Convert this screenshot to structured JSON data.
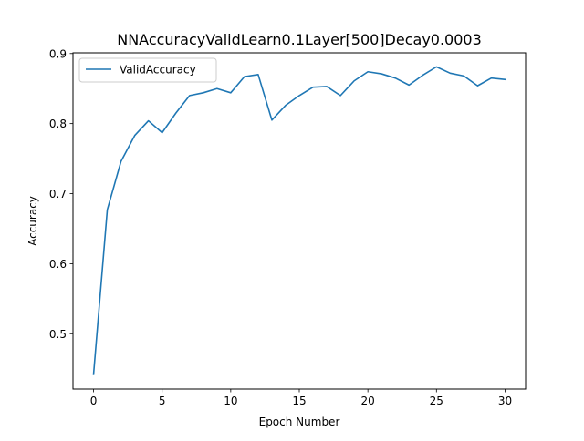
{
  "chart_data": {
    "type": "line",
    "title": "NNAccuracyValidLearn0.1Layer[500]Decay0.0003",
    "xlabel": "Epoch Number",
    "ylabel": "Accuracy",
    "xlim": [
      -1.5,
      31.5
    ],
    "ylim": [
      0.421,
      0.901
    ],
    "xticks": [
      0,
      5,
      10,
      15,
      20,
      25,
      30
    ],
    "yticks": [
      0.5,
      0.6,
      0.7,
      0.8,
      0.9
    ],
    "xtick_labels": [
      "0",
      "5",
      "10",
      "15",
      "20",
      "25",
      "30"
    ],
    "ytick_labels": [
      "0.5",
      "0.6",
      "0.7",
      "0.8",
      "0.9"
    ],
    "grid": false,
    "legend_position": "top-left",
    "series": [
      {
        "name": "ValidAccuracy",
        "color": "#1f77b4",
        "x": [
          0,
          1,
          2,
          3,
          4,
          5,
          6,
          7,
          8,
          9,
          10,
          11,
          12,
          13,
          14,
          15,
          16,
          17,
          18,
          19,
          20,
          21,
          22,
          23,
          24,
          25,
          26,
          27,
          28,
          29,
          30
        ],
        "values": [
          0.442,
          0.677,
          0.746,
          0.783,
          0.804,
          0.787,
          0.815,
          0.84,
          0.844,
          0.85,
          0.844,
          0.867,
          0.87,
          0.805,
          0.826,
          0.84,
          0.852,
          0.853,
          0.84,
          0.861,
          0.874,
          0.871,
          0.865,
          0.855,
          0.869,
          0.881,
          0.872,
          0.868,
          0.854,
          0.865,
          0.863
        ]
      }
    ]
  }
}
